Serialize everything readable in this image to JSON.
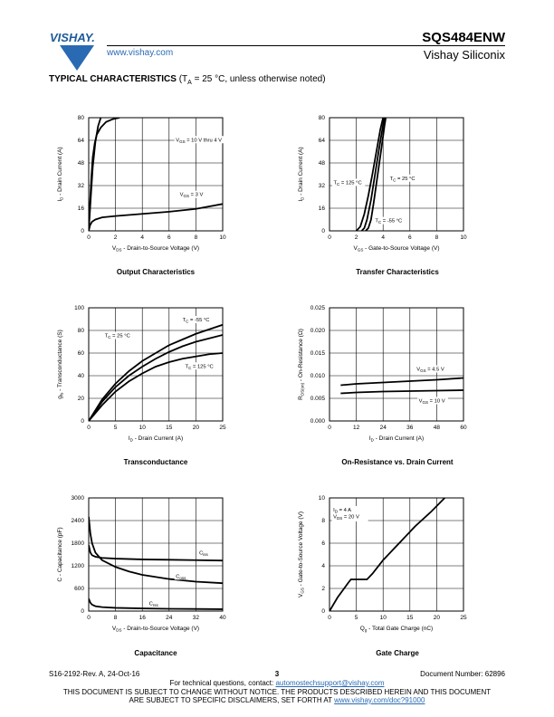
{
  "header": {
    "logo_text": "VISHAY.",
    "url": "www.vishay.com",
    "part_number": "SQS484ENW",
    "company": "Vishay Siliconix"
  },
  "section": {
    "title": "TYPICAL CHARACTERISTICS",
    "condition_pre": "(T",
    "condition_sub": "A",
    "condition_post": " = 25 °C, unless otherwise noted)"
  },
  "chart_data": [
    {
      "id": "output",
      "type": "line",
      "title": "Output Characteristics",
      "xlabel": "V_DS - Drain-to-Source Voltage (V)",
      "ylabel": "I_D - Drain Current (A)",
      "xlim": [
        0,
        10
      ],
      "ylim": [
        0,
        80
      ],
      "xticks": [
        "0",
        "2",
        "4",
        "6",
        "8",
        "10"
      ],
      "yticks": [
        "0",
        "16",
        "32",
        "48",
        "64",
        "80"
      ],
      "grid": true,
      "series": [
        {
          "name": "V_GS = 10 V thru 4 V",
          "x": [
            0,
            0.1,
            0.2,
            0.3,
            0.45,
            0.6,
            0.9,
            1.3,
            1.8,
            2.3
          ],
          "y": [
            0,
            20,
            38,
            52,
            62,
            68,
            73,
            77,
            79,
            80
          ]
        },
        {
          "name": "",
          "x": [
            0,
            0.15,
            0.3,
            0.5,
            0.7,
            0.9
          ],
          "y": [
            0,
            23,
            45,
            63,
            74,
            80
          ]
        },
        {
          "name": "V_GS = 3 V",
          "x": [
            0,
            0.1,
            0.25,
            0.5,
            1,
            2,
            4,
            6,
            8,
            10
          ],
          "y": [
            0,
            4,
            6.5,
            8,
            9.5,
            10.5,
            12,
            13.5,
            15.5,
            19
          ]
        }
      ]
    },
    {
      "id": "transfer",
      "type": "line",
      "title": "Transfer Characteristics",
      "xlabel": "V_GS - Gate-to-Source Voltage (V)",
      "ylabel": "I_D - Drain Current (A)",
      "xlim": [
        0,
        10
      ],
      "ylim": [
        0,
        80
      ],
      "xticks": [
        "0",
        "2",
        "4",
        "6",
        "8",
        "10"
      ],
      "yticks": [
        "0",
        "16",
        "32",
        "48",
        "64",
        "80"
      ],
      "grid": true,
      "series": [
        {
          "name": "T_C = 125 °C",
          "x": [
            2.0,
            2.3,
            2.6,
            2.9,
            3.2,
            3.5,
            3.8,
            4.0
          ],
          "y": [
            0,
            3,
            12,
            25,
            40,
            56,
            72,
            80
          ]
        },
        {
          "name": "T_C = 25 °C",
          "x": [
            2.4,
            2.6,
            2.8,
            3.1,
            3.4,
            3.7,
            4.0,
            4.1
          ],
          "y": [
            0,
            2,
            8,
            22,
            40,
            58,
            75,
            80
          ]
        },
        {
          "name": "T_C = -55 °C",
          "x": [
            2.7,
            2.9,
            3.1,
            3.3,
            3.6,
            3.9,
            4.1,
            4.2
          ],
          "y": [
            0,
            2,
            8,
            20,
            40,
            60,
            74,
            80
          ]
        }
      ]
    },
    {
      "id": "transconductance",
      "type": "line",
      "title": "Transconductance",
      "xlabel": "I_D - Drain Current (A)",
      "ylabel": "g_fs - Transconductance (S)",
      "xlim": [
        0,
        25
      ],
      "ylim": [
        0,
        100
      ],
      "xticks": [
        "0",
        "5",
        "10",
        "15",
        "20",
        "25"
      ],
      "yticks": [
        "0",
        "20",
        "40",
        "60",
        "80",
        "100"
      ],
      "grid": true,
      "series": [
        {
          "name": "T_C = -55 °C",
          "x": [
            0,
            2.5,
            5,
            7.5,
            10,
            12.5,
            15,
            17.5,
            20,
            22.5,
            25
          ],
          "y": [
            0,
            19,
            33,
            44,
            53,
            60,
            67,
            72,
            77,
            81,
            85
          ]
        },
        {
          "name": "T_C = 25 °C",
          "x": [
            0,
            2.5,
            5,
            7.5,
            10,
            12.5,
            15,
            17.5,
            20,
            22.5,
            25
          ],
          "y": [
            0,
            17,
            30,
            40,
            48,
            55,
            61,
            66,
            70,
            73,
            76
          ]
        },
        {
          "name": "T_C = 125 °C",
          "x": [
            0,
            2.5,
            5,
            7.5,
            10,
            12.5,
            15,
            17.5,
            20,
            22.5,
            25
          ],
          "y": [
            0,
            14,
            26,
            35,
            42,
            48,
            52,
            55,
            57,
            59,
            60
          ]
        }
      ]
    },
    {
      "id": "onres",
      "type": "line",
      "title": "On-Resistance vs. Drain Current",
      "xlabel": "I_D - Drain Current (A)",
      "ylabel": "R_DS(on) - On-Resistance (Ω)",
      "xlim": [
        0,
        60
      ],
      "ylim": [
        0,
        0.025
      ],
      "xticks": [
        "0",
        "12",
        "24",
        "36",
        "48",
        "60"
      ],
      "yticks": [
        "0.000",
        "0.005",
        "0.010",
        "0.015",
        "0.020",
        "0.025"
      ],
      "grid": true,
      "series": [
        {
          "name": "V_GS = 4.5 V",
          "x": [
            5,
            12,
            24,
            36,
            48,
            60
          ],
          "y": [
            0.0079,
            0.0082,
            0.0085,
            0.0088,
            0.0091,
            0.0095
          ]
        },
        {
          "name": "V_GS = 10 V",
          "x": [
            5,
            12,
            24,
            36,
            48,
            60
          ],
          "y": [
            0.0061,
            0.0063,
            0.0065,
            0.0066,
            0.0067,
            0.0068
          ]
        }
      ]
    },
    {
      "id": "capacitance",
      "type": "line",
      "title": "Capacitance",
      "xlabel": "V_DS - Drain-to-Source Voltage (V)",
      "ylabel": "C - Capacitance (pF)",
      "xlim": [
        0,
        40
      ],
      "ylim": [
        0,
        3000
      ],
      "xticks": [
        "0",
        "8",
        "16",
        "24",
        "32",
        "40"
      ],
      "yticks": [
        "0",
        "600",
        "1200",
        "1800",
        "2400",
        "3000"
      ],
      "grid": true,
      "series": [
        {
          "name": "C_iss",
          "x": [
            0,
            0.5,
            1,
            2,
            4,
            8,
            16,
            24,
            32,
            40
          ],
          "y": [
            1750,
            1550,
            1480,
            1440,
            1410,
            1390,
            1370,
            1360,
            1350,
            1340
          ]
        },
        {
          "name": "C_oss",
          "x": [
            0,
            0.5,
            1,
            2,
            4,
            8,
            12,
            16,
            24,
            32,
            40
          ],
          "y": [
            2500,
            2050,
            1800,
            1550,
            1350,
            1170,
            1050,
            960,
            850,
            780,
            740
          ]
        },
        {
          "name": "C_rss",
          "x": [
            0,
            0.5,
            1,
            2,
            4,
            8,
            16,
            24,
            32,
            40
          ],
          "y": [
            330,
            220,
            170,
            130,
            105,
            85,
            70,
            60,
            55,
            50
          ]
        }
      ]
    },
    {
      "id": "gatecharge",
      "type": "line",
      "title": "Gate Charge",
      "xlabel": "Q_g - Total Gate Charge (nC)",
      "ylabel": "V_GS - Gate-to-Source Voltage (V)",
      "xlim": [
        0,
        25
      ],
      "ylim": [
        0,
        10
      ],
      "xticks": [
        "0",
        "5",
        "10",
        "15",
        "20",
        "25"
      ],
      "yticks": [
        "0",
        "2",
        "4",
        "6",
        "8",
        "10"
      ],
      "grid": true,
      "annotation": [
        "I_D = 4 A",
        "V_DS = 20 V"
      ],
      "series": [
        {
          "name": "",
          "x": [
            0,
            1.5,
            3.5,
            4,
            7,
            8,
            10,
            13,
            16,
            19,
            21.5
          ],
          "y": [
            0,
            1.2,
            2.5,
            2.8,
            2.8,
            3.3,
            4.5,
            6,
            7.5,
            8.8,
            10
          ]
        }
      ]
    }
  ],
  "titles": {
    "output": "Output Characteristics",
    "transfer": "Transfer Characteristics",
    "transconductance": "Transconductance",
    "onres": "On-Resistance vs. Drain Current",
    "capacitance": "Capacitance",
    "gatecharge": "Gate Charge"
  },
  "footer": {
    "doc_rev": "S16-2192-Rev. A, 24-Oct-16",
    "page": "3",
    "doc_number": "Document Number: 62896",
    "questions_pre": "For technical questions, contact: ",
    "questions_email": "automostechsupport@vishay.com",
    "notice_line1": "THIS DOCUMENT IS SUBJECT TO CHANGE WITHOUT NOTICE. THE PRODUCTS DESCRIBED HEREIN AND THIS DOCUMENT",
    "notice_line2_pre": "ARE SUBJECT TO SPECIFIC DISCLAIMERS, SET FORTH AT ",
    "notice_url": "www.vishay.com/doc?91000"
  }
}
